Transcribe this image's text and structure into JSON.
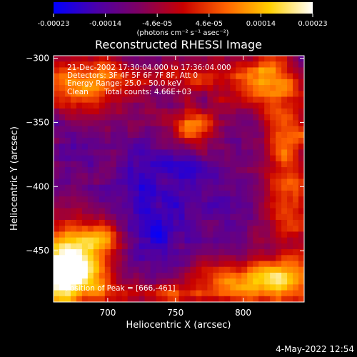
{
  "chart_data": {
    "type": "heatmap",
    "title": "Reconstructed RHESSI Image",
    "xlabel": "Heliocentric X (arcsec)",
    "ylabel": "Heliocentric Y (arcsec)",
    "xlim": [
      660,
      845
    ],
    "ylim": [
      -490,
      -298
    ],
    "xticks": [
      700,
      750,
      800
    ],
    "yticks": [
      -300,
      -350,
      -400,
      -450
    ],
    "colorbar": {
      "range": [
        -0.00023,
        0.00023
      ],
      "ticks": [
        "-0.00023",
        "-0.00014",
        "-4.6e-05",
        "4.6e-05",
        "0.00014",
        "0.00023"
      ],
      "unit_label": "(photons cm⁻² s⁻¹ asec⁻²)",
      "colormap": [
        "#0000ff",
        "#4b00a8",
        "#800060",
        "#c80000",
        "#ff6400",
        "#ffd000",
        "#ffffff"
      ]
    },
    "annotations": {
      "time_range": "21-Dec-2002 17:30:04.000 to 17:36:04.000",
      "detectors": "Detectors: 3F 4F 5F 6F 7F 8F, Att 0",
      "energy": "Energy Range: 25.0 - 50.0 keV",
      "method": "Clean",
      "counts": "Total counts: 4.66E+03",
      "peak": "Position of Peak = [666,-461]"
    },
    "peak_position": [
      666,
      -461
    ],
    "total_counts": 4660,
    "image_description": "Clean-reconstructed flux map; bright source at lower-left corner near the peak position, fainter bright features along the top, right and bottom edges and near (735,-360); interior dominated by weak negative/near-zero flux."
  },
  "footer_date": "4-May-2022 12:54"
}
